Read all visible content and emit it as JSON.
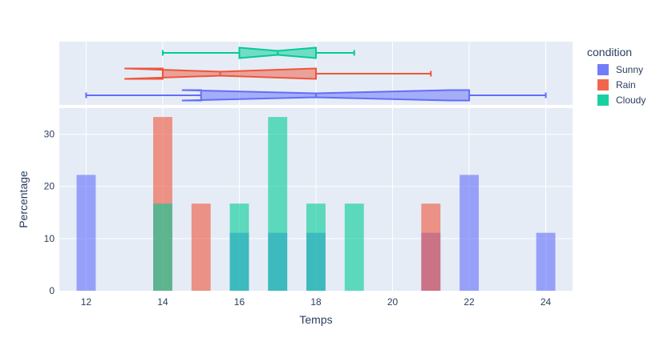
{
  "chart_data": {
    "type": "bar",
    "subtype": "histogram-with-marginal-box",
    "xlabel": "Temps",
    "ylabel": "Percentage",
    "xlim": [
      11.3,
      24.7
    ],
    "ylim": [
      0,
      35
    ],
    "xticks": [
      12,
      14,
      16,
      18,
      20,
      22,
      24
    ],
    "yticks": [
      0,
      10,
      20,
      30
    ],
    "legend": {
      "title": "condition",
      "placement": "top-right"
    },
    "series": [
      {
        "name": "Sunny",
        "color": "#636efa",
        "bins": [
          {
            "x": 12,
            "y": 22.2
          },
          {
            "x": 16,
            "y": 11.1
          },
          {
            "x": 17,
            "y": 11.1
          },
          {
            "x": 18,
            "y": 11.1
          },
          {
            "x": 21,
            "y": 11.1
          },
          {
            "x": 22,
            "y": 22.2
          },
          {
            "x": 24,
            "y": 11.1
          }
        ],
        "box": {
          "min": 12,
          "q1": 15,
          "median": 18,
          "q3": 22,
          "max": 24,
          "notch_low": 14.5,
          "notch_high": 21.5
        }
      },
      {
        "name": "Rain",
        "color": "#ef553b",
        "bins": [
          {
            "x": 14,
            "y": 33.3
          },
          {
            "x": 15,
            "y": 16.7
          },
          {
            "x": 21,
            "y": 16.7
          }
        ],
        "box": {
          "min": 14,
          "q1": 14,
          "median": 15.5,
          "q3": 18,
          "max": 21,
          "notch_low": 13,
          "notch_high": 18
        }
      },
      {
        "name": "Cloudy",
        "color": "#00cc96",
        "bins": [
          {
            "x": 14,
            "y": 16.7
          },
          {
            "x": 16,
            "y": 16.7
          },
          {
            "x": 17,
            "y": 33.3
          },
          {
            "x": 18,
            "y": 16.7
          },
          {
            "x": 19,
            "y": 16.7
          }
        ],
        "box": {
          "min": 14,
          "q1": 16,
          "median": 17,
          "q3": 18,
          "max": 19,
          "notch_low": 16,
          "notch_high": 18
        }
      }
    ]
  }
}
